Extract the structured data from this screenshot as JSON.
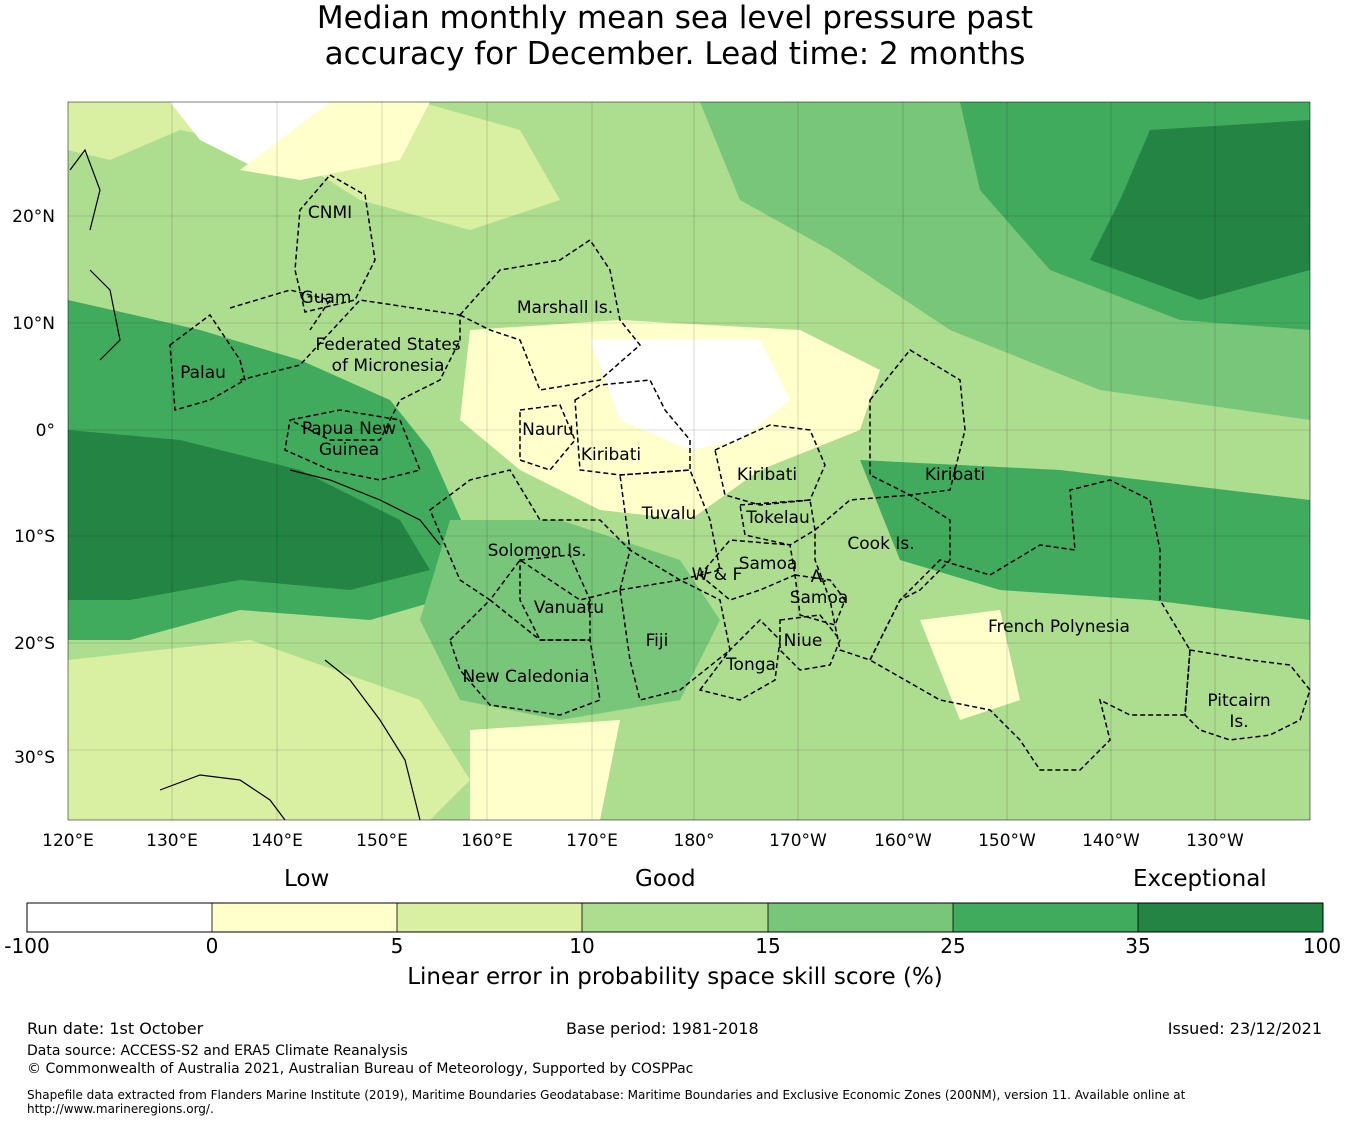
{
  "title": {
    "line1": "Median monthly mean sea level pressure past",
    "line2": "accuracy for December. Lead time: 2 months"
  },
  "map": {
    "lon_labels": [
      "120°E",
      "130°E",
      "140°E",
      "150°E",
      "160°E",
      "170°E",
      "180°",
      "170°W",
      "160°W",
      "150°W",
      "140°W",
      "130°W"
    ],
    "lat_labels": [
      "20°N",
      "10°N",
      "0°",
      "10°S",
      "20°S",
      "30°S"
    ],
    "regions": [
      "CNMI",
      "Guam",
      "Marshall Is.",
      "Federated States",
      "of Micronesia",
      "Palau",
      "Papua New",
      "Guinea",
      "Nauru",
      "Kiribati",
      "Kiribati",
      "Kiribati",
      "Tuvalu",
      "Tokelau",
      "Cook Is.",
      "Solomon Is.",
      "Samoa",
      "W & F",
      "A.",
      "Samoa",
      "Vanuatu",
      "Fiji",
      "Niue",
      "Tonga",
      "French Polynesia",
      "New Caledonia",
      "Pitcairn",
      "Is."
    ]
  },
  "colorbar": {
    "categories": [
      "Low",
      "Good",
      "Exceptional"
    ],
    "ticks": [
      "-100",
      "0",
      "5",
      "10",
      "15",
      "25",
      "35",
      "100"
    ],
    "colors": [
      "#ffffff",
      "#ffffcc",
      "#d9f0a3",
      "#addd8e",
      "#78c679",
      "#41ab5d",
      "#238443"
    ],
    "title": "Linear error in probability space skill score (%)"
  },
  "footer": {
    "run_date": "Run date: 1st October",
    "base_period": "Base period: 1981-2018",
    "issued": "Issued: 23/12/2021",
    "data_source": "Data source: ACCESS-S2 and ERA5 Climate Reanalysis",
    "copyright": "© Commonwealth of Australia 2021, Australian Bureau of Meteorology, Supported by COSPPac",
    "shapefile_1": "Shapefile data extracted from Flanders Marine Institute (2019), Maritime Boundaries Geodatabase: Maritime Boundaries and Exclusive Economic Zones (200NM), version 11. Available online at",
    "shapefile_2": "http://www.marineregions.org/."
  }
}
